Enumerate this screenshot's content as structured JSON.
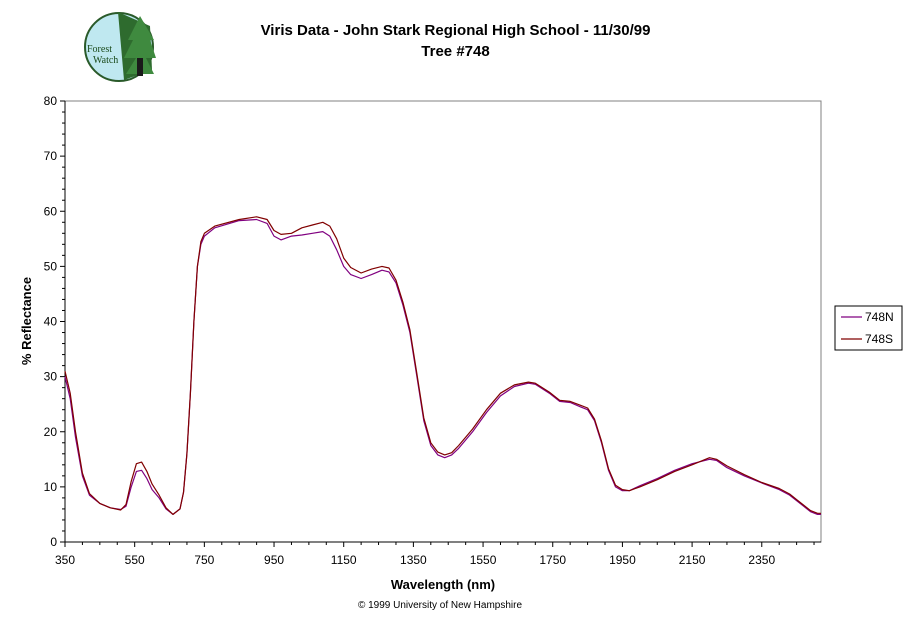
{
  "logo": {
    "text_line1": "Forest",
    "text_line2": "Watch"
  },
  "footer": "© 1999 University of New Hampshire",
  "chart_data": {
    "type": "line",
    "title": "Viris Data - John Stark Regional High School - 11/30/99",
    "subtitle": "Tree #748",
    "xlabel": "Wavelength (nm)",
    "ylabel": "% Reflectance",
    "xlim": [
      350,
      2520
    ],
    "ylim": [
      0,
      80
    ],
    "x_ticks": [
      350,
      550,
      750,
      950,
      1150,
      1350,
      1550,
      1750,
      1950,
      2150,
      2350
    ],
    "y_ticks": [
      0,
      10,
      20,
      30,
      40,
      50,
      60,
      70,
      80
    ],
    "grid": false,
    "legend_position": "right",
    "series": [
      {
        "name": "748N",
        "color": "#800080",
        "points": [
          [
            350,
            30
          ],
          [
            365,
            26
          ],
          [
            380,
            19
          ],
          [
            400,
            12
          ],
          [
            420,
            8.5
          ],
          [
            450,
            7
          ],
          [
            480,
            6.2
          ],
          [
            510,
            5.9
          ],
          [
            525,
            6.5
          ],
          [
            540,
            10
          ],
          [
            555,
            12.8
          ],
          [
            570,
            13
          ],
          [
            585,
            11.5
          ],
          [
            600,
            9.5
          ],
          [
            620,
            8
          ],
          [
            640,
            6
          ],
          [
            660,
            5
          ],
          [
            680,
            6
          ],
          [
            690,
            9
          ],
          [
            700,
            16
          ],
          [
            710,
            27
          ],
          [
            720,
            40
          ],
          [
            730,
            50
          ],
          [
            740,
            54
          ],
          [
            750,
            55.5
          ],
          [
            780,
            57
          ],
          [
            850,
            58.3
          ],
          [
            900,
            58.5
          ],
          [
            930,
            57.8
          ],
          [
            950,
            55.5
          ],
          [
            970,
            54.8
          ],
          [
            1000,
            55.5
          ],
          [
            1030,
            55.7
          ],
          [
            1060,
            56
          ],
          [
            1090,
            56.3
          ],
          [
            1110,
            55.5
          ],
          [
            1130,
            53
          ],
          [
            1150,
            50
          ],
          [
            1170,
            48.5
          ],
          [
            1200,
            47.8
          ],
          [
            1230,
            48.5
          ],
          [
            1260,
            49.3
          ],
          [
            1280,
            49
          ],
          [
            1300,
            47
          ],
          [
            1320,
            43
          ],
          [
            1340,
            38
          ],
          [
            1360,
            30
          ],
          [
            1380,
            22
          ],
          [
            1400,
            17.5
          ],
          [
            1420,
            15.8
          ],
          [
            1440,
            15.3
          ],
          [
            1460,
            15.8
          ],
          [
            1480,
            17
          ],
          [
            1520,
            20
          ],
          [
            1560,
            23.5
          ],
          [
            1600,
            26.5
          ],
          [
            1640,
            28.2
          ],
          [
            1680,
            28.8
          ],
          [
            1700,
            28.6
          ],
          [
            1740,
            27
          ],
          [
            1770,
            25.5
          ],
          [
            1800,
            25.3
          ],
          [
            1830,
            24.5
          ],
          [
            1850,
            24
          ],
          [
            1870,
            22
          ],
          [
            1890,
            18
          ],
          [
            1910,
            13
          ],
          [
            1930,
            10
          ],
          [
            1950,
            9.3
          ],
          [
            1970,
            9.3
          ],
          [
            2000,
            10.2
          ],
          [
            2050,
            11.5
          ],
          [
            2100,
            13
          ],
          [
            2150,
            14.2
          ],
          [
            2200,
            15
          ],
          [
            2220,
            14.8
          ],
          [
            2250,
            13.5
          ],
          [
            2300,
            12
          ],
          [
            2350,
            10.7
          ],
          [
            2400,
            9.5
          ],
          [
            2430,
            8.5
          ],
          [
            2450,
            7.5
          ],
          [
            2470,
            6.5
          ],
          [
            2490,
            5.5
          ],
          [
            2510,
            5
          ],
          [
            2520,
            5
          ]
        ]
      },
      {
        "name": "748S",
        "color": "#800000",
        "points": [
          [
            350,
            31
          ],
          [
            365,
            27
          ],
          [
            380,
            20
          ],
          [
            400,
            12.5
          ],
          [
            420,
            8.8
          ],
          [
            450,
            7
          ],
          [
            480,
            6.2
          ],
          [
            510,
            5.8
          ],
          [
            525,
            6.8
          ],
          [
            540,
            11
          ],
          [
            555,
            14.2
          ],
          [
            570,
            14.5
          ],
          [
            585,
            12.8
          ],
          [
            600,
            10.5
          ],
          [
            620,
            8.5
          ],
          [
            640,
            6.2
          ],
          [
            660,
            5
          ],
          [
            680,
            6
          ],
          [
            690,
            9
          ],
          [
            700,
            16
          ],
          [
            710,
            27
          ],
          [
            720,
            40
          ],
          [
            730,
            50
          ],
          [
            740,
            54.5
          ],
          [
            750,
            56
          ],
          [
            780,
            57.3
          ],
          [
            850,
            58.5
          ],
          [
            900,
            59
          ],
          [
            930,
            58.5
          ],
          [
            950,
            56.5
          ],
          [
            970,
            55.8
          ],
          [
            1000,
            56
          ],
          [
            1030,
            57
          ],
          [
            1060,
            57.5
          ],
          [
            1090,
            58
          ],
          [
            1110,
            57.3
          ],
          [
            1130,
            55
          ],
          [
            1150,
            51.5
          ],
          [
            1170,
            49.8
          ],
          [
            1200,
            48.8
          ],
          [
            1230,
            49.5
          ],
          [
            1260,
            50
          ],
          [
            1280,
            49.7
          ],
          [
            1300,
            47.5
          ],
          [
            1320,
            43.5
          ],
          [
            1340,
            38.5
          ],
          [
            1360,
            30.5
          ],
          [
            1380,
            22.5
          ],
          [
            1400,
            18
          ],
          [
            1420,
            16.3
          ],
          [
            1440,
            15.8
          ],
          [
            1460,
            16.2
          ],
          [
            1480,
            17.5
          ],
          [
            1520,
            20.5
          ],
          [
            1560,
            24
          ],
          [
            1600,
            27
          ],
          [
            1640,
            28.5
          ],
          [
            1680,
            29
          ],
          [
            1700,
            28.8
          ],
          [
            1740,
            27.2
          ],
          [
            1770,
            25.7
          ],
          [
            1800,
            25.5
          ],
          [
            1830,
            24.8
          ],
          [
            1850,
            24.3
          ],
          [
            1870,
            22.3
          ],
          [
            1890,
            18.3
          ],
          [
            1910,
            13.3
          ],
          [
            1930,
            10.3
          ],
          [
            1950,
            9.5
          ],
          [
            1970,
            9.3
          ],
          [
            2000,
            10
          ],
          [
            2050,
            11.3
          ],
          [
            2100,
            12.8
          ],
          [
            2150,
            14
          ],
          [
            2200,
            15.3
          ],
          [
            2220,
            15
          ],
          [
            2250,
            13.8
          ],
          [
            2300,
            12.2
          ],
          [
            2350,
            10.8
          ],
          [
            2400,
            9.7
          ],
          [
            2430,
            8.7
          ],
          [
            2450,
            7.7
          ],
          [
            2470,
            6.7
          ],
          [
            2490,
            5.7
          ],
          [
            2510,
            5.2
          ],
          [
            2520,
            5.2
          ]
        ]
      }
    ]
  }
}
